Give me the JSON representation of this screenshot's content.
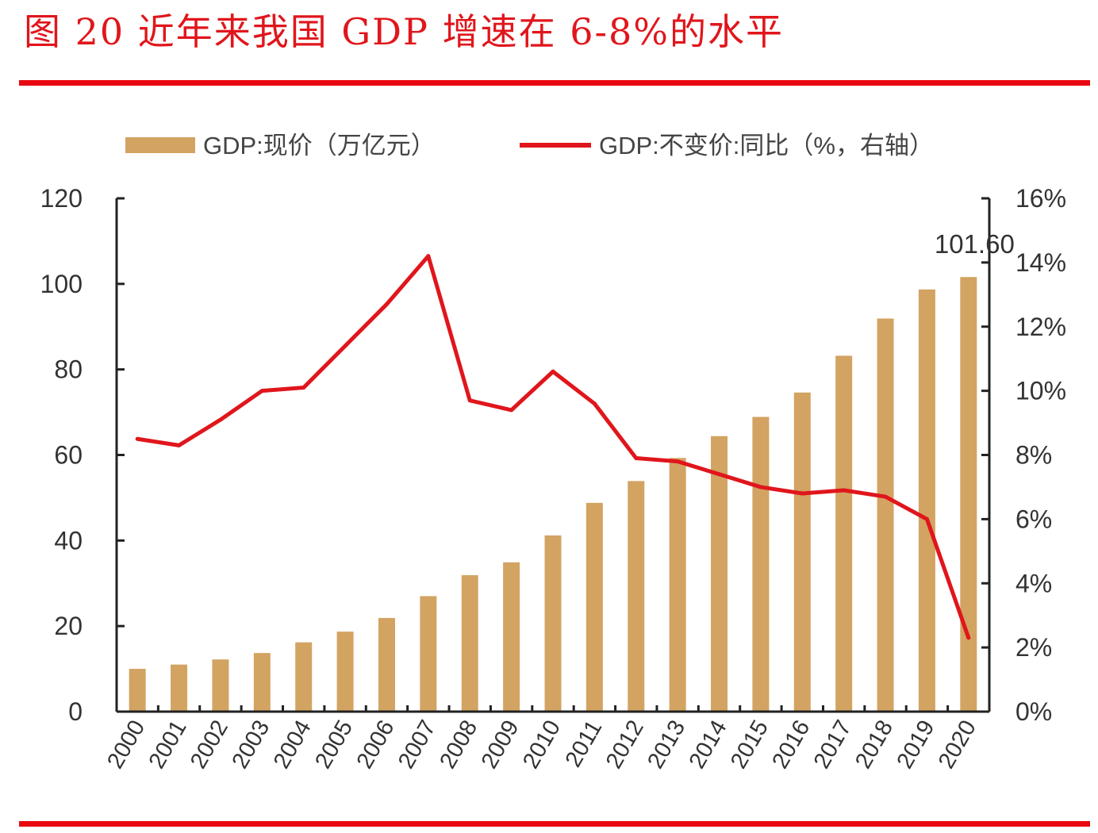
{
  "title": "图 20   近年来我国 GDP 增速在 6-8%的水平",
  "colors": {
    "bar": "#d3a362",
    "line": "#e0161c",
    "rule": "#e8080f",
    "axis": "#222222"
  },
  "chart_data": {
    "type": "bar+line",
    "categories": [
      "2000",
      "2001",
      "2002",
      "2003",
      "2004",
      "2005",
      "2006",
      "2007",
      "2008",
      "2009",
      "2010",
      "2011",
      "2012",
      "2013",
      "2014",
      "2015",
      "2016",
      "2017",
      "2018",
      "2019",
      "2020"
    ],
    "series": [
      {
        "name": "GDP:现价（万亿元）",
        "type": "bar",
        "axis": "left",
        "values": [
          10.0,
          11.0,
          12.2,
          13.7,
          16.2,
          18.7,
          21.9,
          27.0,
          31.9,
          34.9,
          41.2,
          48.8,
          53.9,
          59.3,
          64.4,
          68.9,
          74.6,
          83.2,
          91.9,
          98.7,
          101.6
        ]
      },
      {
        "name": "GDP:不变价:同比（%，右轴）",
        "type": "line",
        "axis": "right",
        "values": [
          8.5,
          8.3,
          9.1,
          10.0,
          10.1,
          11.4,
          12.7,
          14.2,
          9.7,
          9.4,
          10.6,
          9.6,
          7.9,
          7.8,
          7.4,
          7.0,
          6.8,
          6.9,
          6.7,
          6.0,
          2.3
        ]
      }
    ],
    "data_labels": [
      {
        "category": "2020",
        "series": "GDP:现价（万亿元）",
        "text": "101.60"
      }
    ],
    "y_left": {
      "range": [
        0,
        120
      ],
      "ticks": [
        "0",
        "20",
        "40",
        "60",
        "80",
        "100",
        "120"
      ]
    },
    "y_right": {
      "range": [
        0,
        16
      ],
      "ticks": [
        "0%",
        "2%",
        "4%",
        "6%",
        "8%",
        "10%",
        "12%",
        "14%",
        "16%"
      ]
    },
    "grid": false,
    "legend": "top"
  }
}
